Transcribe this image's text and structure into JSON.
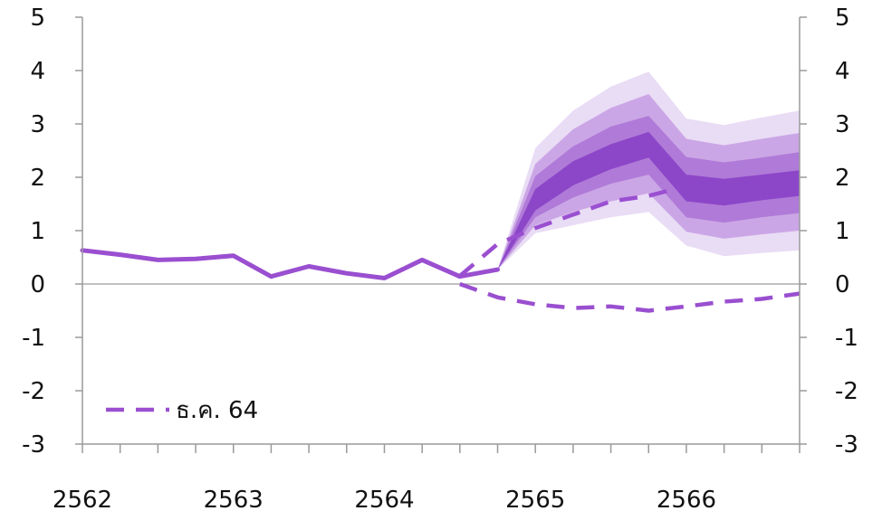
{
  "chart_data": {
    "type": "line",
    "title": "",
    "xlabel": "",
    "ylabel": "",
    "ylim": [
      -3,
      5
    ],
    "yticks": [
      "5",
      "4",
      "3",
      "2",
      "1",
      "0",
      "-1",
      "-2",
      "-3"
    ],
    "year_labels": [
      "2562",
      "2563",
      "2564",
      "2565",
      "2566"
    ],
    "x_range": [
      2562.0,
      2566.75
    ],
    "grid": false,
    "legend": {
      "position": "bottom-left",
      "entries": [
        "ธ.ค. 64"
      ]
    },
    "colors": {
      "actual": "#9a4fd0",
      "dashed": "#9a4fd0",
      "band_core": "#8c46c8",
      "band_2": "#b07ad8",
      "band_3": "#cba6e6",
      "band_4": "#e9dcf5",
      "axis": "#9a9a9a",
      "zero_line": "#9a9a9a"
    },
    "series": [
      {
        "key": "actual",
        "style": "solid",
        "points": [
          [
            2562.0,
            0.63
          ],
          [
            2562.25,
            0.55
          ],
          [
            2562.5,
            0.45
          ],
          [
            2562.75,
            0.47
          ],
          [
            2563.0,
            0.53
          ],
          [
            2563.25,
            0.14
          ],
          [
            2563.5,
            0.33
          ],
          [
            2563.75,
            0.2
          ],
          [
            2564.0,
            0.11
          ],
          [
            2564.25,
            0.45
          ],
          [
            2564.5,
            0.14
          ],
          [
            2564.75,
            0.27
          ]
        ]
      },
      {
        "key": "forecast_upper_dashed",
        "name": "ธ.ค. 64",
        "style": "dashed",
        "points": [
          [
            2564.5,
            0.15
          ],
          [
            2564.75,
            0.75
          ],
          [
            2565.0,
            1.05
          ],
          [
            2565.25,
            1.3
          ],
          [
            2565.5,
            1.55
          ],
          [
            2565.75,
            1.65
          ],
          [
            2565.95,
            1.8
          ]
        ]
      },
      {
        "key": "forecast_lower_dashed",
        "style": "dashed",
        "points": [
          [
            2564.5,
            0.0
          ],
          [
            2564.75,
            -0.25
          ],
          [
            2565.0,
            -0.38
          ],
          [
            2565.25,
            -0.45
          ],
          [
            2565.5,
            -0.42
          ],
          [
            2565.75,
            -0.5
          ],
          [
            2566.0,
            -0.42
          ],
          [
            2566.25,
            -0.33
          ],
          [
            2566.5,
            -0.28
          ],
          [
            2566.75,
            -0.18
          ]
        ]
      }
    ],
    "fan_chart": {
      "x": [
        2564.75,
        2565.0,
        2565.25,
        2565.5,
        2565.75,
        2566.0,
        2566.25,
        2566.5,
        2566.75
      ],
      "median": [
        0.27,
        1.55,
        2.05,
        2.4,
        2.62,
        1.78,
        1.72,
        1.82,
        1.88
      ],
      "bands": [
        {
          "key": "band_4",
          "upper": [
            0.27,
            2.55,
            3.25,
            3.7,
            3.98,
            3.1,
            2.98,
            3.12,
            3.25
          ],
          "lower": [
            0.27,
            0.95,
            1.1,
            1.25,
            1.35,
            0.72,
            0.52,
            0.58,
            0.63
          ]
        },
        {
          "key": "band_3",
          "upper": [
            0.27,
            2.25,
            2.9,
            3.3,
            3.56,
            2.72,
            2.6,
            2.72,
            2.83
          ],
          "lower": [
            0.27,
            1.1,
            1.35,
            1.55,
            1.7,
            0.98,
            0.85,
            0.93,
            1.0
          ]
        },
        {
          "key": "band_2",
          "upper": [
            0.27,
            2.02,
            2.58,
            2.95,
            3.15,
            2.38,
            2.28,
            2.37,
            2.47
          ],
          "lower": [
            0.27,
            1.25,
            1.62,
            1.88,
            2.05,
            1.25,
            1.15,
            1.25,
            1.33
          ]
        },
        {
          "key": "band_core",
          "upper": [
            0.27,
            1.78,
            2.3,
            2.62,
            2.85,
            2.05,
            1.97,
            2.05,
            2.13
          ],
          "lower": [
            0.27,
            1.38,
            1.85,
            2.15,
            2.37,
            1.55,
            1.47,
            1.57,
            1.65
          ]
        }
      ]
    }
  }
}
